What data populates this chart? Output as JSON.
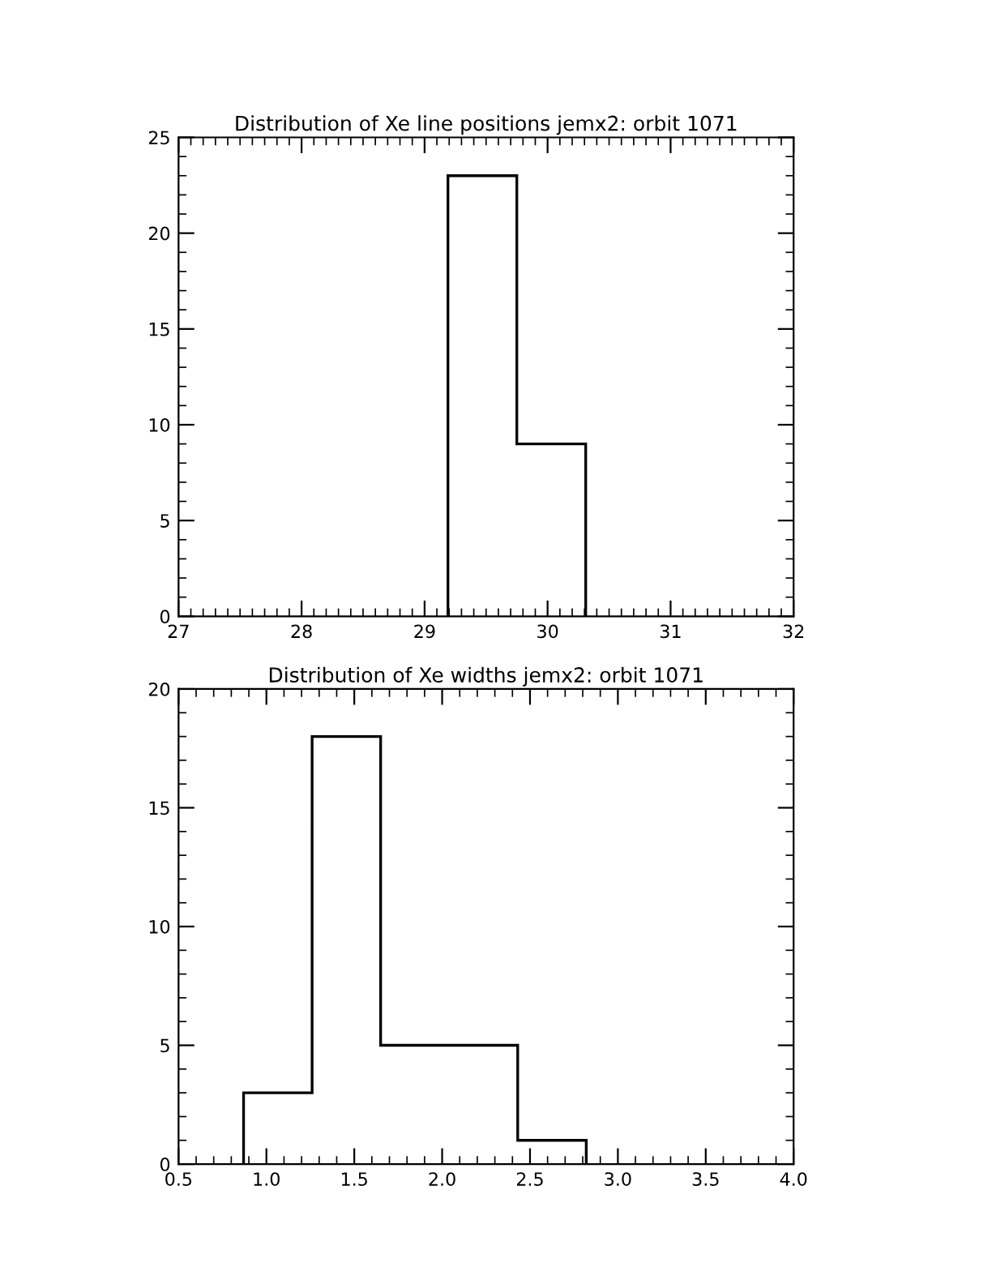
{
  "chart_data": [
    {
      "type": "histogram",
      "title": "Distribution of Xe line positions jemx2: orbit 1071",
      "bins": [
        29.19,
        29.75,
        30.31
      ],
      "values": [
        23,
        9
      ],
      "color": "#000000",
      "xlim": [
        27,
        32
      ],
      "xticks": [
        27,
        28,
        29,
        30,
        31,
        32
      ],
      "ylim": [
        0,
        25
      ],
      "yticks": [
        0,
        5,
        10,
        15,
        20,
        25
      ],
      "grid": false,
      "legend": false
    },
    {
      "type": "histogram",
      "title": "Distribution of Xe widths jemx2: orbit 1071",
      "bins": [
        0.87,
        1.26,
        1.65,
        2.04,
        2.43,
        2.82
      ],
      "values": [
        3,
        18,
        5,
        5,
        1
      ],
      "color": "#000000",
      "xlim": [
        0.5,
        4.0
      ],
      "xticks": [
        {
          "value": 0.5,
          "label": "0.5"
        },
        {
          "value": 1.0,
          "label": "1.0"
        },
        {
          "value": 1.5,
          "label": "1.5"
        },
        {
          "value": 2.0,
          "label": "2.0"
        },
        {
          "value": 2.5,
          "label": "2.5"
        },
        {
          "value": 3.0,
          "label": "3.0"
        },
        {
          "value": 3.5,
          "label": "3.5"
        },
        {
          "value": 4.0,
          "label": "4.0"
        }
      ],
      "ylim": [
        0,
        20
      ],
      "yticks": [
        0,
        5,
        10,
        15,
        20
      ],
      "grid": false,
      "legend": false
    }
  ]
}
